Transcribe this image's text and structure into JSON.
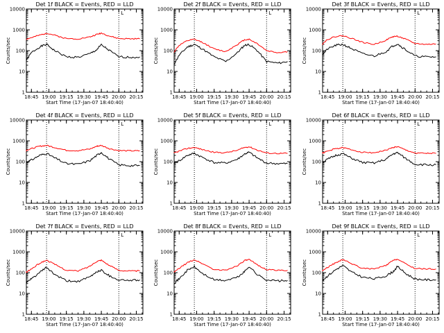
{
  "figure_title": "",
  "chart_data": [
    {
      "type": "line",
      "title": "Det 1f BLACK = Events, RED = LLD",
      "xlabel": "Start Time (17-Jan-07 18:40:40)",
      "ylabel": "Counts/sec",
      "y_scale": "log",
      "ylim": [
        1,
        10000
      ],
      "y_ticks": [
        "1",
        "10",
        "100",
        "1000",
        "10000"
      ],
      "x_ticks": [
        "18:45",
        "19:00",
        "19:15",
        "19:30",
        "19:45",
        "20:00",
        "20:15"
      ],
      "x_range": [
        "18:40:40",
        "20:20:40"
      ],
      "vlines": [
        "18:58",
        "20:00"
      ],
      "marker_label": "L",
      "grid": false,
      "legend": "none",
      "series": [
        {
          "name": "Events",
          "color": "#000000",
          "x": [
            "18:40",
            "18:45",
            "18:52",
            "18:58",
            "19:05",
            "19:15",
            "19:25",
            "19:35",
            "19:41",
            "19:45",
            "19:52",
            "20:00",
            "20:10",
            "20:18"
          ],
          "y": [
            30,
            80,
            150,
            200,
            100,
            50,
            48,
            70,
            110,
            190,
            100,
            50,
            48,
            50
          ]
        },
        {
          "name": "LLD",
          "color": "#ff0000",
          "x": [
            "18:40",
            "18:45",
            "18:52",
            "18:58",
            "19:05",
            "19:15",
            "19:25",
            "19:35",
            "19:41",
            "19:45",
            "19:52",
            "20:00",
            "20:10",
            "20:18"
          ],
          "y": [
            350,
            420,
            550,
            700,
            550,
            380,
            370,
            450,
            600,
            700,
            500,
            380,
            370,
            370
          ]
        }
      ]
    },
    {
      "type": "line",
      "title": "Det 2f BLACK = Events, RED = LLD",
      "xlabel": "Start Time (17-Jan-07 18:40:40)",
      "ylabel": "Counts/sec",
      "y_scale": "log",
      "ylim": [
        1,
        10000
      ],
      "y_ticks": [
        "1",
        "10",
        "100",
        "1000",
        "10000"
      ],
      "x_ticks": [
        "18:45",
        "19:00",
        "19:15",
        "19:30",
        "19:45",
        "20:00",
        "20:15"
      ],
      "x_range": [
        "18:40:40",
        "20:20:40"
      ],
      "vlines": [
        "18:58",
        "20:00"
      ],
      "marker_label": "L",
      "grid": false,
      "legend": "none",
      "series": [
        {
          "name": "Events",
          "color": "#000000",
          "x": [
            "18:40",
            "18:45",
            "18:52",
            "18:58",
            "19:05",
            "19:15",
            "19:25",
            "19:35",
            "19:41",
            "19:45",
            "19:52",
            "20:00",
            "20:10",
            "20:18"
          ],
          "y": [
            20,
            60,
            150,
            200,
            120,
            50,
            30,
            80,
            180,
            200,
            100,
            30,
            25,
            30
          ]
        },
        {
          "name": "LLD",
          "color": "#ff0000",
          "x": [
            "18:40",
            "18:45",
            "18:52",
            "18:58",
            "19:05",
            "19:15",
            "19:25",
            "19:35",
            "19:41",
            "19:45",
            "19:52",
            "20:00",
            "20:10",
            "20:18"
          ],
          "y": [
            80,
            180,
            300,
            350,
            250,
            120,
            90,
            200,
            330,
            350,
            220,
            100,
            80,
            90
          ]
        }
      ]
    },
    {
      "type": "line",
      "title": "Det 3f BLACK = Events, RED = LLD",
      "xlabel": "Start Time (17-Jan-07 18:40:40)",
      "ylabel": "Counts/sec",
      "y_scale": "log",
      "ylim": [
        1,
        10000
      ],
      "y_ticks": [
        "1",
        "10",
        "100",
        "1000",
        "10000"
      ],
      "x_ticks": [
        "18:45",
        "19:00",
        "19:15",
        "19:30",
        "19:45",
        "20:00",
        "20:15"
      ],
      "x_range": [
        "18:40:40",
        "20:20:40"
      ],
      "vlines": [
        "18:58",
        "20:00"
      ],
      "marker_label": "L",
      "grid": false,
      "legend": "none",
      "series": [
        {
          "name": "Events",
          "color": "#000000",
          "x": [
            "18:40",
            "18:45",
            "18:52",
            "18:58",
            "19:05",
            "19:15",
            "19:25",
            "19:35",
            "19:41",
            "19:45",
            "19:52",
            "20:00",
            "20:10",
            "20:18"
          ],
          "y": [
            60,
            120,
            180,
            200,
            130,
            70,
            55,
            90,
            170,
            210,
            110,
            55,
            50,
            50
          ]
        },
        {
          "name": "LLD",
          "color": "#ff0000",
          "x": [
            "18:40",
            "18:45",
            "18:52",
            "18:58",
            "19:05",
            "19:15",
            "19:25",
            "19:35",
            "19:41",
            "19:45",
            "19:52",
            "20:00",
            "20:10",
            "20:18"
          ],
          "y": [
            200,
            350,
            480,
            520,
            400,
            250,
            200,
            320,
            470,
            500,
            350,
            220,
            200,
            210
          ]
        }
      ]
    },
    {
      "type": "line",
      "title": "Det 4f BLACK = Events, RED = LLD",
      "xlabel": "Start Time (17-Jan-07 18:40:40)",
      "ylabel": "Counts/sec",
      "y_scale": "log",
      "ylim": [
        1,
        10000
      ],
      "y_ticks": [
        "1",
        "10",
        "100",
        "1000",
        "10000"
      ],
      "x_ticks": [
        "18:45",
        "19:00",
        "19:15",
        "19:30",
        "19:45",
        "20:00",
        "20:15"
      ],
      "x_range": [
        "18:40:40",
        "20:20:40"
      ],
      "vlines": [
        "18:58",
        "20:00"
      ],
      "marker_label": "L",
      "grid": false,
      "legend": "none",
      "series": [
        {
          "name": "Events",
          "color": "#000000",
          "x": [
            "18:40",
            "18:45",
            "18:52",
            "18:58",
            "19:05",
            "19:15",
            "19:25",
            "19:35",
            "19:41",
            "19:45",
            "19:52",
            "20:00",
            "20:10",
            "20:18"
          ],
          "y": [
            90,
            120,
            200,
            250,
            150,
            80,
            75,
            110,
            200,
            280,
            130,
            70,
            65,
            65
          ]
        },
        {
          "name": "LLD",
          "color": "#ff0000",
          "x": [
            "18:40",
            "18:45",
            "18:52",
            "18:58",
            "19:05",
            "19:15",
            "19:25",
            "19:35",
            "19:41",
            "19:45",
            "19:52",
            "20:00",
            "20:10",
            "20:18"
          ],
          "y": [
            350,
            420,
            550,
            600,
            480,
            350,
            340,
            400,
            550,
            600,
            420,
            340,
            330,
            330
          ]
        }
      ]
    },
    {
      "type": "line",
      "title": "Det 5f BLACK = Events, RED = LLD",
      "xlabel": "Start Time (17-Jan-07 18:40:40)",
      "ylabel": "Counts/sec",
      "y_scale": "log",
      "ylim": [
        1,
        10000
      ],
      "y_ticks": [
        "1",
        "10",
        "100",
        "1000",
        "10000"
      ],
      "x_ticks": [
        "18:45",
        "19:00",
        "19:15",
        "19:30",
        "19:45",
        "20:00",
        "20:15"
      ],
      "x_range": [
        "18:40:40",
        "20:20:40"
      ],
      "vlines": [
        "18:58",
        "20:00"
      ],
      "marker_label": "L",
      "grid": false,
      "legend": "none",
      "series": [
        {
          "name": "Events",
          "color": "#000000",
          "x": [
            "18:40",
            "18:45",
            "18:52",
            "18:58",
            "19:05",
            "19:15",
            "19:25",
            "19:35",
            "19:41",
            "19:45",
            "19:52",
            "20:00",
            "20:10",
            "20:18"
          ],
          "y": [
            80,
            110,
            200,
            250,
            160,
            90,
            85,
            130,
            230,
            280,
            150,
            85,
            80,
            80
          ]
        },
        {
          "name": "LLD",
          "color": "#ff0000",
          "x": [
            "18:40",
            "18:45",
            "18:52",
            "18:58",
            "19:05",
            "19:15",
            "19:25",
            "19:35",
            "19:41",
            "19:45",
            "19:52",
            "20:00",
            "20:10",
            "20:18"
          ],
          "y": [
            250,
            320,
            430,
            480,
            380,
            280,
            270,
            350,
            480,
            520,
            360,
            260,
            250,
            250
          ]
        }
      ]
    },
    {
      "type": "line",
      "title": "Det 6f BLACK = Events, RED = LLD",
      "xlabel": "Start Time (17-Jan-07 18:40:40)",
      "ylabel": "Counts/sec",
      "y_scale": "log",
      "ylim": [
        1,
        10000
      ],
      "y_ticks": [
        "1",
        "10",
        "100",
        "1000",
        "10000"
      ],
      "x_ticks": [
        "18:45",
        "19:00",
        "19:15",
        "19:30",
        "19:45",
        "20:00",
        "20:15"
      ],
      "x_range": [
        "18:40:40",
        "20:20:40"
      ],
      "vlines": [
        "18:58",
        "20:00"
      ],
      "marker_label": "L",
      "grid": false,
      "legend": "none",
      "series": [
        {
          "name": "Events",
          "color": "#000000",
          "x": [
            "18:40",
            "18:45",
            "18:52",
            "18:58",
            "19:05",
            "19:15",
            "19:25",
            "19:35",
            "19:41",
            "19:45",
            "19:52",
            "20:00",
            "20:10",
            "20:18"
          ],
          "y": [
            90,
            130,
            200,
            240,
            150,
            90,
            85,
            130,
            230,
            270,
            140,
            75,
            70,
            70
          ]
        },
        {
          "name": "LLD",
          "color": "#ff0000",
          "x": [
            "18:40",
            "18:45",
            "18:52",
            "18:58",
            "19:05",
            "19:15",
            "19:25",
            "19:35",
            "19:41",
            "19:45",
            "19:52",
            "20:00",
            "20:10",
            "20:18"
          ],
          "y": [
            250,
            320,
            420,
            470,
            380,
            280,
            270,
            350,
            480,
            520,
            360,
            260,
            250,
            250
          ]
        }
      ]
    },
    {
      "type": "line",
      "title": "Det 7f BLACK = Events, RED = LLD",
      "xlabel": "Start Time (17-Jan-07 18:40:40)",
      "ylabel": "Counts/sec",
      "y_scale": "log",
      "ylim": [
        1,
        10000
      ],
      "y_ticks": [
        "1",
        "10",
        "100",
        "1000",
        "10000"
      ],
      "x_ticks": [
        "18:45",
        "19:00",
        "19:15",
        "19:30",
        "19:45",
        "20:00",
        "20:15"
      ],
      "x_range": [
        "18:40:40",
        "20:20:40"
      ],
      "vlines": [
        "18:58",
        "20:00"
      ],
      "marker_label": "L",
      "grid": false,
      "legend": "none",
      "series": [
        {
          "name": "Events",
          "color": "#000000",
          "x": [
            "18:40",
            "18:45",
            "18:52",
            "18:58",
            "19:05",
            "19:15",
            "19:25",
            "19:35",
            "19:41",
            "19:45",
            "19:52",
            "20:00",
            "20:10",
            "20:18"
          ],
          "y": [
            30,
            50,
            100,
            180,
            80,
            40,
            38,
            60,
            110,
            130,
            70,
            45,
            42,
            45
          ]
        },
        {
          "name": "LLD",
          "color": "#ff0000",
          "x": [
            "18:40",
            "18:45",
            "18:52",
            "18:58",
            "19:05",
            "19:15",
            "19:25",
            "19:35",
            "19:41",
            "19:45",
            "19:52",
            "20:00",
            "20:10",
            "20:18"
          ],
          "y": [
            100,
            150,
            280,
            400,
            250,
            130,
            120,
            200,
            350,
            400,
            220,
            130,
            120,
            120
          ]
        }
      ]
    },
    {
      "type": "line",
      "title": "Det 8f BLACK = Events, RED = LLD",
      "xlabel": "Start Time (17-Jan-07 18:40:40)",
      "ylabel": "Counts/sec",
      "y_scale": "log",
      "ylim": [
        1,
        10000
      ],
      "y_ticks": [
        "1",
        "10",
        "100",
        "1000",
        "10000"
      ],
      "x_ticks": [
        "18:45",
        "19:00",
        "19:15",
        "19:30",
        "19:45",
        "20:00",
        "20:15"
      ],
      "x_range": [
        "18:40:40",
        "20:20:40"
      ],
      "vlines": [
        "18:58",
        "20:00"
      ],
      "marker_label": "L",
      "grid": false,
      "legend": "none",
      "series": [
        {
          "name": "Events",
          "color": "#000000",
          "x": [
            "18:40",
            "18:45",
            "18:52",
            "18:58",
            "19:05",
            "19:15",
            "19:25",
            "19:35",
            "19:41",
            "19:45",
            "19:52",
            "20:00",
            "20:10",
            "20:18"
          ],
          "y": [
            30,
            50,
            130,
            190,
            90,
            45,
            42,
            60,
            110,
            200,
            80,
            45,
            40,
            42
          ]
        },
        {
          "name": "LLD",
          "color": "#ff0000",
          "x": [
            "18:40",
            "18:45",
            "18:52",
            "18:58",
            "19:05",
            "19:15",
            "19:25",
            "19:35",
            "19:41",
            "19:45",
            "19:52",
            "20:00",
            "20:10",
            "20:18"
          ],
          "y": [
            100,
            160,
            300,
            420,
            270,
            140,
            130,
            220,
            380,
            420,
            240,
            140,
            130,
            130
          ]
        }
      ]
    },
    {
      "type": "line",
      "title": "Det 9f BLACK = Events, RED = LLD",
      "xlabel": "Start Time (17-Jan-07 18:40:40)",
      "ylabel": "Counts/sec",
      "y_scale": "log",
      "ylim": [
        1,
        10000
      ],
      "y_ticks": [
        "1",
        "10",
        "100",
        "1000",
        "10000"
      ],
      "x_ticks": [
        "18:45",
        "19:00",
        "19:15",
        "19:30",
        "19:45",
        "20:00",
        "20:15"
      ],
      "x_range": [
        "18:40:40",
        "20:20:40"
      ],
      "vlines": [
        "18:58",
        "20:00"
      ],
      "marker_label": "L",
      "grid": false,
      "legend": "none",
      "series": [
        {
          "name": "Events",
          "color": "#000000",
          "x": [
            "18:40",
            "18:45",
            "18:52",
            "18:58",
            "19:05",
            "19:15",
            "19:25",
            "19:35",
            "19:41",
            "19:45",
            "19:52",
            "20:00",
            "20:10",
            "20:18"
          ],
          "y": [
            40,
            70,
            140,
            220,
            110,
            60,
            50,
            70,
            110,
            200,
            90,
            50,
            45,
            45
          ]
        },
        {
          "name": "LLD",
          "color": "#ff0000",
          "x": [
            "18:40",
            "18:45",
            "18:52",
            "18:58",
            "19:05",
            "19:15",
            "19:25",
            "19:35",
            "19:41",
            "19:45",
            "19:52",
            "20:00",
            "20:10",
            "20:18"
          ],
          "y": [
            120,
            180,
            300,
            420,
            280,
            160,
            150,
            220,
            380,
            450,
            260,
            160,
            150,
            150
          ]
        }
      ]
    }
  ]
}
